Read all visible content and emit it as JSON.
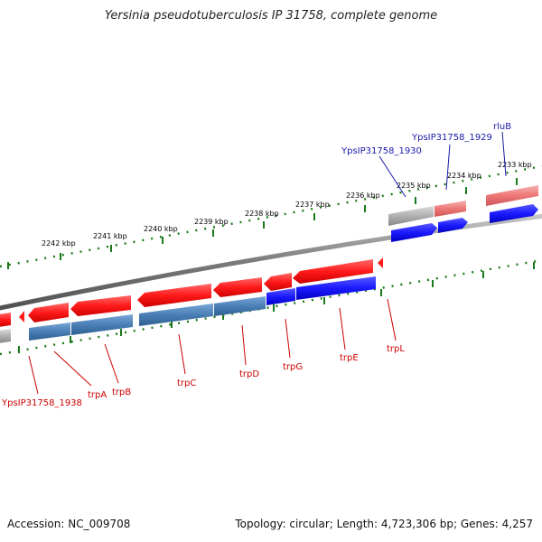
{
  "title": "Yersinia pseudotuberculosis IP 31758, complete genome",
  "accession": "Accession: NC_009708",
  "summary": "Topology: circular; Length: 4,723,306 bp; Genes: 4,257",
  "ruler_upper": [
    "2242 kbp",
    "2241 kbp",
    "2240 kbp",
    "2239 kbp",
    "2238 kbp",
    "2237 kbp",
    "2236 kbp",
    "2235 kbp",
    "2234 kbp",
    "2233 kbp"
  ],
  "gene_labels_top": [
    "rluB",
    "YpsIP31758_1929",
    "YpsIP31758_1930"
  ],
  "gene_labels_bottom": [
    "YpsIP31758_1938",
    "trpA",
    "trpB",
    "trpC",
    "trpD",
    "trpG",
    "trpE",
    "trpL"
  ],
  "colors": {
    "forward_gene": "#ff1a1a",
    "reverse_cds": "#1a1aff",
    "steel_cds": "#4a7fb5",
    "pseudo_gray": "#a8a8a8",
    "ruler_tick": "#1a7a1a",
    "label_red": "#cc0000",
    "label_blue": "#1a1aaa",
    "backbone": "#808080"
  }
}
